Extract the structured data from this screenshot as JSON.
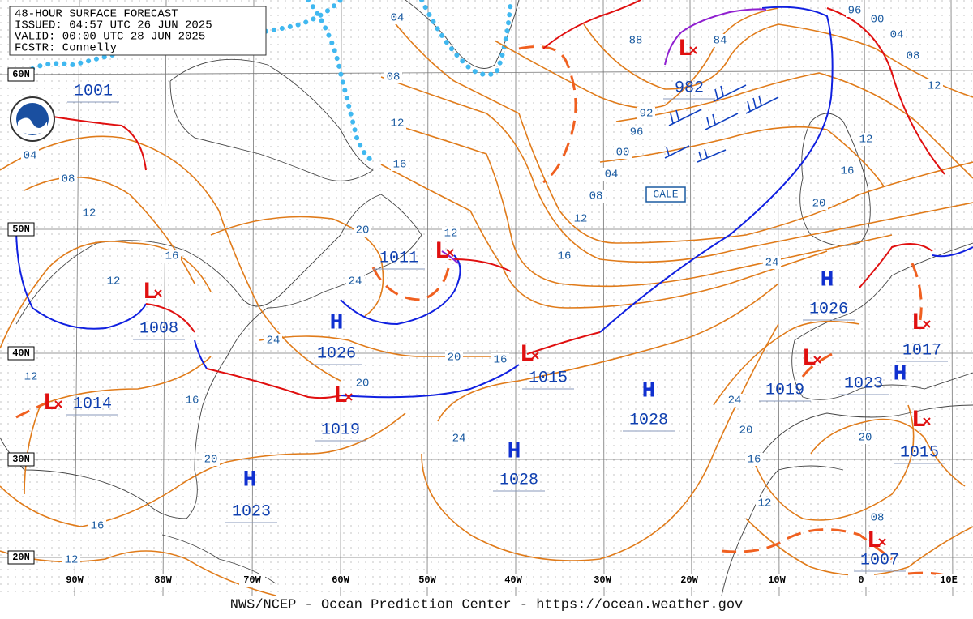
{
  "header": {
    "lines": [
      "48-HOUR SURFACE FORECAST",
      "ISSUED: 04:57 UTC 26 JUN 2025",
      "VALID: 00:00 UTC 28 JUN 2025",
      "FCSTR: Connelly"
    ]
  },
  "centers": [
    {
      "symbol": "L",
      "pressure": "982"
    },
    {
      "symbol": "L",
      "pressure": "1011"
    },
    {
      "symbol": "L",
      "pressure": "1008"
    },
    {
      "symbol": "L",
      "pressure": "1014"
    },
    {
      "symbol": "L",
      "pressure": "1019"
    },
    {
      "symbol": "L",
      "pressure": "1015"
    },
    {
      "symbol": "L",
      "pressure": "1019"
    },
    {
      "symbol": "L",
      "pressure": "1017"
    },
    {
      "symbol": "L",
      "pressure": "1015"
    },
    {
      "symbol": "L",
      "pressure": "1007"
    },
    {
      "symbol": "H",
      "pressure": "1026"
    },
    {
      "symbol": "H",
      "pressure": "1023"
    },
    {
      "symbol": "H",
      "pressure": "1028"
    },
    {
      "symbol": "H",
      "pressure": "1028"
    },
    {
      "symbol": "H",
      "pressure": "1026"
    },
    {
      "symbol": "H",
      "pressure": "1023"
    }
  ],
  "pressure_labels": [
    "1001"
  ],
  "isobar_labels": [
    "04",
    "08",
    "12",
    "16",
    "20",
    "24",
    "24",
    "20",
    "20",
    "16",
    "16",
    "12",
    "08",
    "04",
    "00",
    "96",
    "92",
    "88",
    "84",
    "12",
    "24",
    "20",
    "16",
    "12",
    "12",
    "08",
    "04",
    "00",
    "96",
    "24",
    "20",
    "16",
    "12",
    "08",
    "20",
    "24",
    "20",
    "16",
    "12",
    "12",
    "16",
    "16",
    "12",
    "12",
    "08",
    "04"
  ],
  "latitude_labels": [
    "60N",
    "50N",
    "40N",
    "30N",
    "20N"
  ],
  "longitude_labels": [
    "90W",
    "80W",
    "70W",
    "60W",
    "50W",
    "40W",
    "30W",
    "20W",
    "10W",
    "0",
    "10E"
  ],
  "warning": "GALE",
  "footer": "NWS/NCEP - Ocean Prediction Center - https://ocean.weather.gov"
}
